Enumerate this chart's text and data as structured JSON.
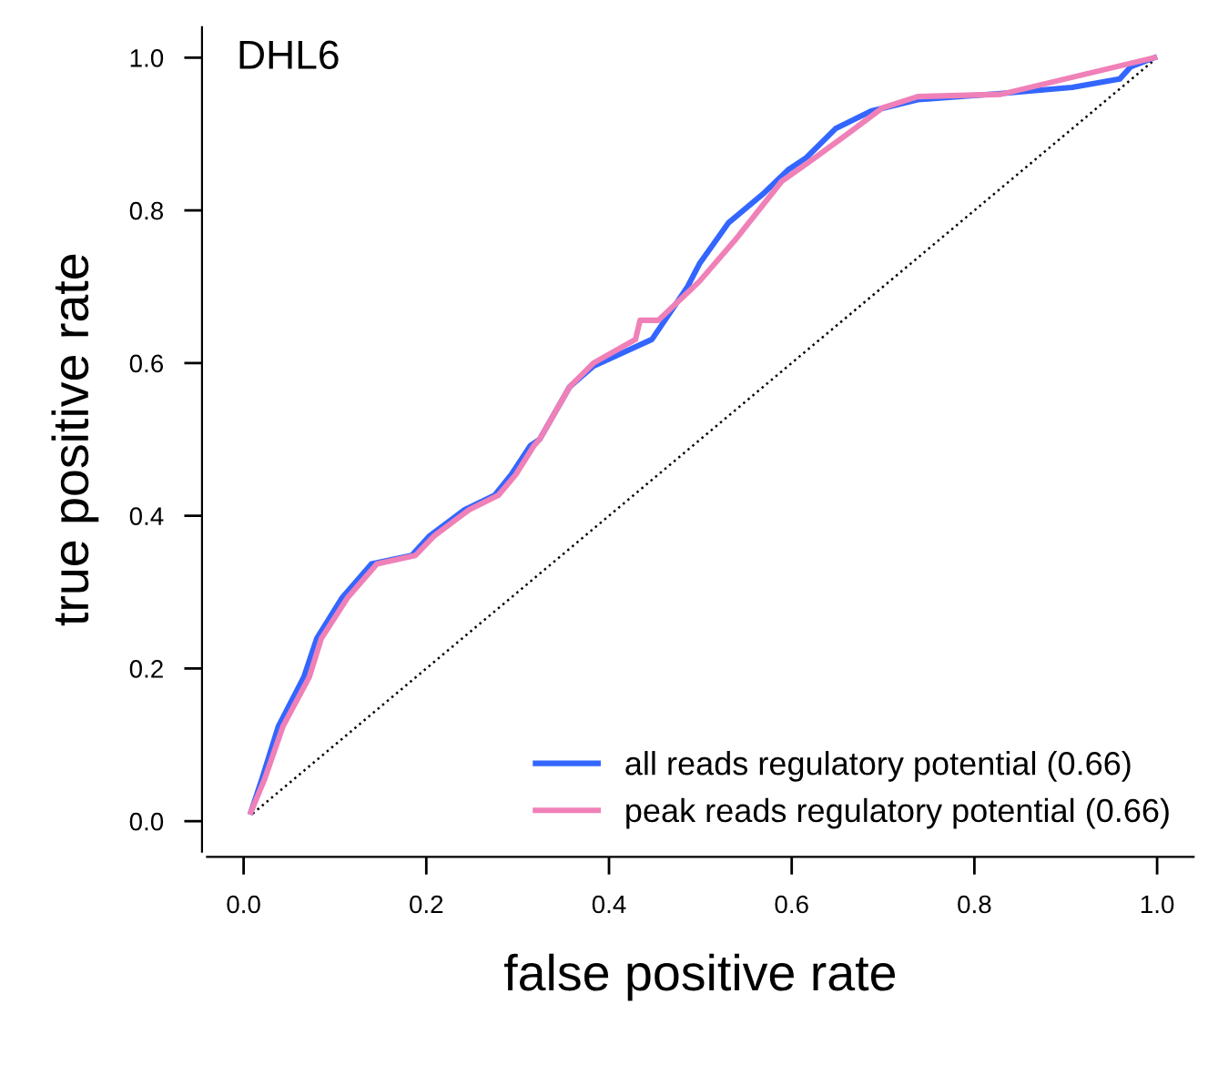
{
  "chart_data": {
    "type": "line",
    "xlabel": "false positive rate",
    "ylabel": "true positive rate",
    "annotations": [
      "DHL6"
    ],
    "xlim": [
      -0.04,
      1.04
    ],
    "ylim": [
      -0.04,
      1.04
    ],
    "xticks": [
      {
        "value": 0,
        "label": "0.0"
      },
      {
        "value": 0.2,
        "label": "0.2"
      },
      {
        "value": 0.4,
        "label": "0.4"
      },
      {
        "value": 0.6,
        "label": "0.6"
      },
      {
        "value": 0.8,
        "label": "0.8"
      },
      {
        "value": 1,
        "label": "1.0"
      }
    ],
    "yticks": [
      {
        "value": 0,
        "label": "0.0"
      },
      {
        "value": 0.2,
        "label": "0.2"
      },
      {
        "value": 0.4,
        "label": "0.4"
      },
      {
        "value": 0.6,
        "label": "0.6"
      },
      {
        "value": 0.8,
        "label": "0.8"
      },
      {
        "value": 1,
        "label": "1.0"
      }
    ],
    "grid": false,
    "legend": "bottom right",
    "marker": "none",
    "series": [
      {
        "color": "#000000",
        "line_style": "dotted",
        "x": [
          0.01,
          1.0
        ],
        "values": [
          0.01,
          1.0
        ]
      },
      {
        "name": "all reads regulatory potential (0.66)",
        "color": "#3366ff",
        "line_style": "solid",
        "x": [
          0.008,
          0.02,
          0.038,
          0.066,
          0.08,
          0.108,
          0.14,
          0.184,
          0.203,
          0.242,
          0.275,
          0.293,
          0.314,
          0.324,
          0.357,
          0.383,
          0.447,
          0.486,
          0.499,
          0.531,
          0.57,
          0.596,
          0.616,
          0.648,
          0.687,
          0.738,
          0.829,
          0.907,
          0.959,
          0.971,
          0.997
        ],
        "values": [
          0.012,
          0.055,
          0.124,
          0.189,
          0.239,
          0.293,
          0.337,
          0.348,
          0.373,
          0.408,
          0.427,
          0.454,
          0.492,
          0.5,
          0.569,
          0.596,
          0.631,
          0.7,
          0.73,
          0.784,
          0.823,
          0.853,
          0.869,
          0.907,
          0.93,
          0.945,
          0.953,
          0.961,
          0.972,
          0.988,
          1.0
        ]
      },
      {
        "name": "peak reads regulatory potential (0.66)",
        "color": "#f080b8",
        "line_style": "solid",
        "x": [
          0.008,
          0.023,
          0.043,
          0.072,
          0.085,
          0.114,
          0.146,
          0.188,
          0.208,
          0.247,
          0.279,
          0.298,
          0.318,
          0.324,
          0.357,
          0.383,
          0.429,
          0.434,
          0.454,
          0.499,
          0.538,
          0.589,
          0.621,
          0.66,
          0.699,
          0.738,
          0.829,
          0.997
        ],
        "values": [
          0.012,
          0.055,
          0.124,
          0.189,
          0.239,
          0.293,
          0.337,
          0.348,
          0.373,
          0.408,
          0.427,
          0.454,
          0.492,
          0.5,
          0.569,
          0.6,
          0.631,
          0.656,
          0.656,
          0.707,
          0.761,
          0.838,
          0.865,
          0.899,
          0.934,
          0.949,
          0.952,
          1.0
        ]
      }
    ]
  }
}
